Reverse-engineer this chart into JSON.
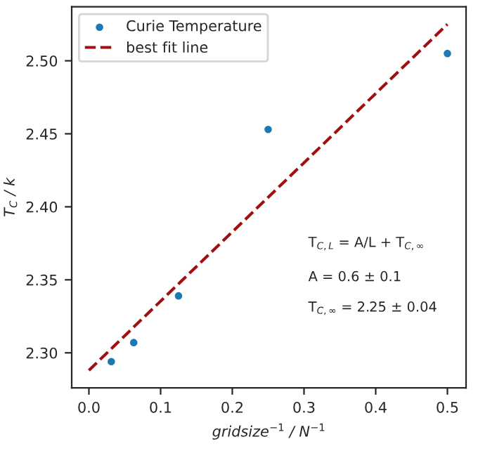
{
  "chart_data": {
    "type": "scatter",
    "xlabel": "gridsize$^{−1}$ / N$^{−1}$",
    "ylabel": "T$_{C}$ / k",
    "xlim": [
      -0.024,
      0.526
    ],
    "ylim": [
      2.276,
      2.537
    ],
    "xticks": [
      {
        "value": 0.0,
        "label": "0.0"
      },
      0.1,
      0.2,
      0.3,
      0.4,
      0.5
    ],
    "yticks": [
      {
        "value": 2.3,
        "label": "2.30"
      },
      2.35,
      {
        "value": 2.4,
        "label": "2.40"
      },
      2.45,
      {
        "value": 2.5,
        "label": "2.50"
      }
    ],
    "series": [
      {
        "name": "Curie Temperature",
        "color": "#1f77b4",
        "marker": "circle",
        "x": [
          0.03125,
          0.0625,
          0.125,
          0.25,
          0.5
        ],
        "values": [
          2.294,
          2.307,
          2.339,
          2.453,
          2.505
        ]
      },
      {
        "name": "best fit line",
        "type": "line",
        "color": "#a01010",
        "line_style": "dashed",
        "marker": "none",
        "x": [
          0.0,
          0.5
        ],
        "values": [
          2.288,
          2.525
        ]
      }
    ],
    "annotations": [
      "T$_{C,L}$ = A/L + T$_{C,∞}$",
      "A = 0.6 ± 0.1",
      "T$_{C,∞}$ = 2.25 ± 0.04"
    ],
    "legend": "top left",
    "grid": false
  }
}
